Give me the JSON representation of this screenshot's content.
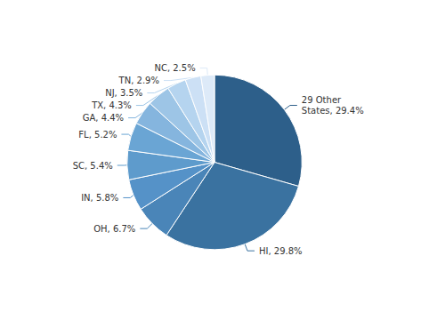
{
  "chart_data": {
    "type": "pie",
    "categories": [
      "29 Other\nStates",
      "HI",
      "OH",
      "IN",
      "SC",
      "FL",
      "GA",
      "TX",
      "NJ",
      "TN",
      "NC"
    ],
    "values": [
      29.4,
      29.8,
      6.7,
      5.8,
      5.4,
      5.2,
      4.4,
      4.3,
      3.5,
      2.9,
      2.5
    ],
    "value_labels": [
      "29 Other\nStates, 29.4%",
      "HI, 29.8%",
      "OH, 6.7%",
      "IN, 5.8%",
      "SC, 5.4%",
      "FL, 5.2%",
      "GA, 4.4%",
      "TX, 4.3%",
      "NJ, 3.5%",
      "TN, 2.9%",
      "NC, 2.5%"
    ],
    "colors": [
      "#2d5f8a",
      "#3a72a0",
      "#4a85b8",
      "#5592c8",
      "#5e9bcc",
      "#6aa5d4",
      "#85b5de",
      "#9dc5e6",
      "#b5d4ef",
      "#cce0f5",
      "#ddeaf8"
    ],
    "data_labels": true,
    "legend": false
  }
}
